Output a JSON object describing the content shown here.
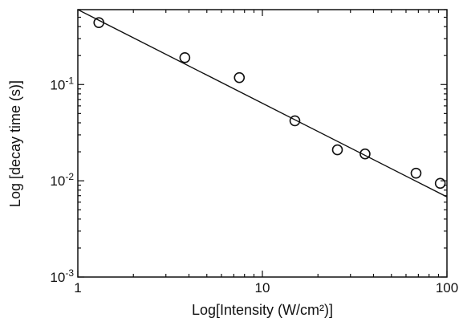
{
  "chart_data": {
    "type": "scatter",
    "title": "",
    "xlabel": "Log[Intensity (W/cm²)]",
    "ylabel": "Log [decay time (s)]",
    "xscale": "log",
    "yscale": "log",
    "xlim": [
      1,
      100
    ],
    "ylim": [
      0.001,
      0.6
    ],
    "grid": false,
    "x_ticks": [
      {
        "value": 1,
        "label": "1"
      },
      {
        "value": 10,
        "label": "10"
      },
      {
        "value": 100,
        "label": "100"
      }
    ],
    "y_ticks": [
      {
        "value": 0.001,
        "base": "10",
        "exp": "-3"
      },
      {
        "value": 0.01,
        "base": "10",
        "exp": "-2"
      },
      {
        "value": 0.1,
        "base": "10",
        "exp": "-1"
      }
    ],
    "series": [
      {
        "kind": "points",
        "marker": "open-circle",
        "x": [
          1.3,
          3.8,
          7.5,
          15,
          25.5,
          36,
          68,
          92
        ],
        "y": [
          0.44,
          0.19,
          0.118,
          0.042,
          0.021,
          0.019,
          0.012,
          0.0094
        ]
      },
      {
        "kind": "fit-line",
        "x": [
          1,
          100
        ],
        "y": [
          0.6,
          0.0068
        ]
      }
    ]
  }
}
